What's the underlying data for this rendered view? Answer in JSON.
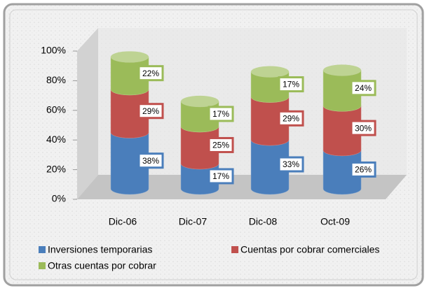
{
  "chart_data": {
    "type": "cylinder",
    "categories": [
      "Dic-06",
      "Dic-07",
      "Dic-08",
      "Oct-09"
    ],
    "series": [
      {
        "name": "Inversiones temporarias",
        "color": "#4a7ebb",
        "values": [
          38,
          17,
          33,
          26
        ],
        "value_labels": [
          "38%",
          "17%",
          "33%",
          "26%"
        ]
      },
      {
        "name": "Cuentas por cobrar comerciales",
        "color": "#c0504d",
        "values": [
          29,
          25,
          29,
          30
        ],
        "value_labels": [
          "29%",
          "25%",
          "29%",
          "30%"
        ]
      },
      {
        "name": "Otras cuentas por cobrar",
        "color": "#9bbb59",
        "values": [
          22,
          17,
          17,
          24
        ],
        "value_labels": [
          "22%",
          "17%",
          "17%",
          "24%"
        ]
      }
    ],
    "ylim": [
      0,
      100
    ],
    "yticks": [
      {
        "value": 0,
        "label": "0%"
      },
      {
        "value": 20,
        "label": "20%"
      },
      {
        "value": 40,
        "label": "40%"
      },
      {
        "value": 60,
        "label": "60%"
      },
      {
        "value": 80,
        "label": "80%"
      },
      {
        "value": 100,
        "label": "100%"
      }
    ],
    "legend": "bottom"
  }
}
